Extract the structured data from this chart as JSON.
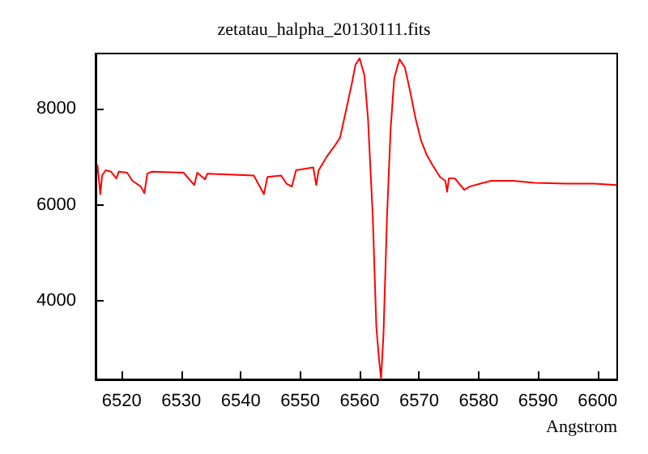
{
  "chart_data": {
    "type": "line",
    "title": "zetatau_halpha_20130111.fits",
    "xlabel": "Angstrom",
    "x": [
      6515.9,
      6516.4,
      6516.7,
      6517.3,
      6518.2,
      6519.1,
      6519.5,
      6520.9,
      6521.8,
      6523.2,
      6523.8,
      6524.3,
      6525,
      6530.4,
      6532.2,
      6532.7,
      6534,
      6534.4,
      6542.2,
      6543.9,
      6544.5,
      6546.8,
      6547.7,
      6548.6,
      6549.3,
      6552.2,
      6552.7,
      6553.1,
      6554.5,
      6555.8,
      6556.7,
      6557.6,
      6558.6,
      6559.3,
      6560,
      6560.8,
      6561.4,
      6562.2,
      6562.8,
      6563.3,
      6563.6,
      6564,
      6564.6,
      6565.2,
      6565.8,
      6566.7,
      6567.6,
      6568.5,
      6569.4,
      6570.3,
      6571.2,
      6572.2,
      6573.5,
      6574.4,
      6574.7,
      6575,
      6576,
      6577.6,
      6578.5,
      6580.3,
      6582.1,
      6585.8,
      6589.4,
      6594.8,
      6599.4,
      6603.2
    ],
    "series": [
      {
        "color": "#ff0000",
        "values": [
          6840,
          6220,
          6610,
          6720,
          6690,
          6550,
          6690,
          6670,
          6500,
          6380,
          6240,
          6650,
          6690,
          6670,
          6410,
          6670,
          6530,
          6650,
          6610,
          6220,
          6580,
          6610,
          6440,
          6380,
          6720,
          6780,
          6410,
          6720,
          7010,
          7230,
          7400,
          7910,
          8480,
          8930,
          9060,
          8700,
          7800,
          5760,
          3450,
          2710,
          2370,
          3280,
          5760,
          7570,
          8640,
          9040,
          8870,
          8360,
          7800,
          7350,
          7060,
          6840,
          6580,
          6500,
          6270,
          6550,
          6550,
          6310,
          6380,
          6440,
          6500,
          6500,
          6460,
          6440,
          6440,
          6410
        ]
      }
    ],
    "xlim": [
      6515.6,
      6603.3
    ],
    "ylim": [
      2350,
      9160
    ],
    "xticks": [
      6520,
      6530,
      6540,
      6550,
      6560,
      6570,
      6580,
      6590,
      6600
    ],
    "yticks": [
      4000,
      6000,
      8000
    ],
    "grid": false,
    "marker": "none",
    "line_style": "solid"
  }
}
